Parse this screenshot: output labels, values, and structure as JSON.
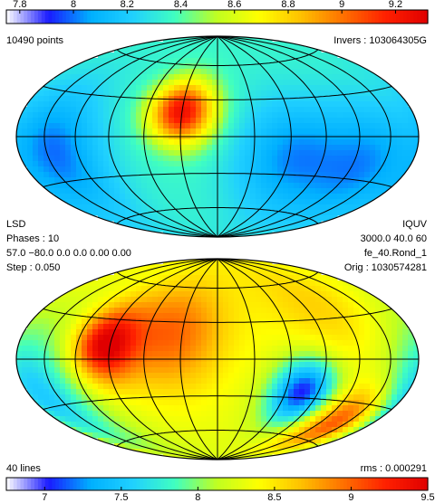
{
  "top_panel": {
    "points_label": "10490 points",
    "invers_label": "Invers : 103064305G"
  },
  "mid_text": {
    "left": [
      "LSD",
      "Phases : 10",
      "57.0 −80.0 0.0 0.0 0.00 0.00",
      "Step : 0.050"
    ],
    "right": [
      "IQUV",
      "3000.0 40.0 60",
      "fe_40.Rond_1",
      "Orig : 1030574281"
    ]
  },
  "bottom_panel": {
    "lines_label": "40 lines",
    "rms_label": "rms :  0.000291"
  },
  "colors": {
    "colormap": [
      "#ffffff",
      "#1a1aff",
      "#00b0ff",
      "#20d0ff",
      "#40ffc0",
      "#c0ff20",
      "#ffff00",
      "#ffc000",
      "#ff7000",
      "#ff2000",
      "#e00000"
    ],
    "background": "#ffffff",
    "grid": "#000000"
  },
  "chart_data": [
    {
      "type": "heatmap",
      "title": "",
      "projection": "Hammer-Aitoff",
      "colorbar_ticks": [
        "7.8",
        "8",
        "8.2",
        "8.4",
        "8.6",
        "8.8",
        "9",
        "9.2"
      ],
      "colorbar_values": [
        7.8,
        8.0,
        8.2,
        8.4,
        8.6,
        8.8,
        9.0,
        9.2
      ],
      "colorbar_range": [
        7.75,
        9.32
      ],
      "colorbar_position": "top",
      "features": [
        {
          "kind": "max",
          "lon_deg": -30,
          "lat_deg": 20,
          "value": 9.25
        },
        {
          "kind": "min",
          "lon_deg": -140,
          "lat_deg": -10,
          "value": 8.0
        },
        {
          "kind": "min",
          "lon_deg": 60,
          "lat_deg": -15,
          "value": 8.05
        },
        {
          "kind": "min",
          "lon_deg": 130,
          "lat_deg": -20,
          "value": 8.05
        }
      ]
    },
    {
      "type": "heatmap",
      "title": "",
      "projection": "Hammer-Aitoff",
      "colorbar_ticks": [
        "7",
        "7.5",
        "8",
        "8.5",
        "9",
        "9.5"
      ],
      "colorbar_values": [
        7.0,
        7.5,
        8.0,
        8.5,
        9.0,
        9.5
      ],
      "colorbar_range": [
        6.75,
        9.5
      ],
      "colorbar_position": "bottom",
      "features": [
        {
          "kind": "max",
          "lon_deg": -40,
          "lat_deg": 20,
          "value": 9.0
        },
        {
          "kind": "max",
          "lon_deg": -95,
          "lat_deg": 10,
          "value": 9.45
        },
        {
          "kind": "max",
          "lon_deg": 140,
          "lat_deg": -45,
          "value": 9.3
        },
        {
          "kind": "max",
          "lon_deg": 100,
          "lat_deg": 40,
          "value": 8.6
        },
        {
          "kind": "min",
          "lon_deg": 75,
          "lat_deg": -25,
          "value": 7.0
        },
        {
          "kind": "min",
          "lon_deg": -170,
          "lat_deg": -25,
          "value": 7.5
        }
      ]
    }
  ]
}
